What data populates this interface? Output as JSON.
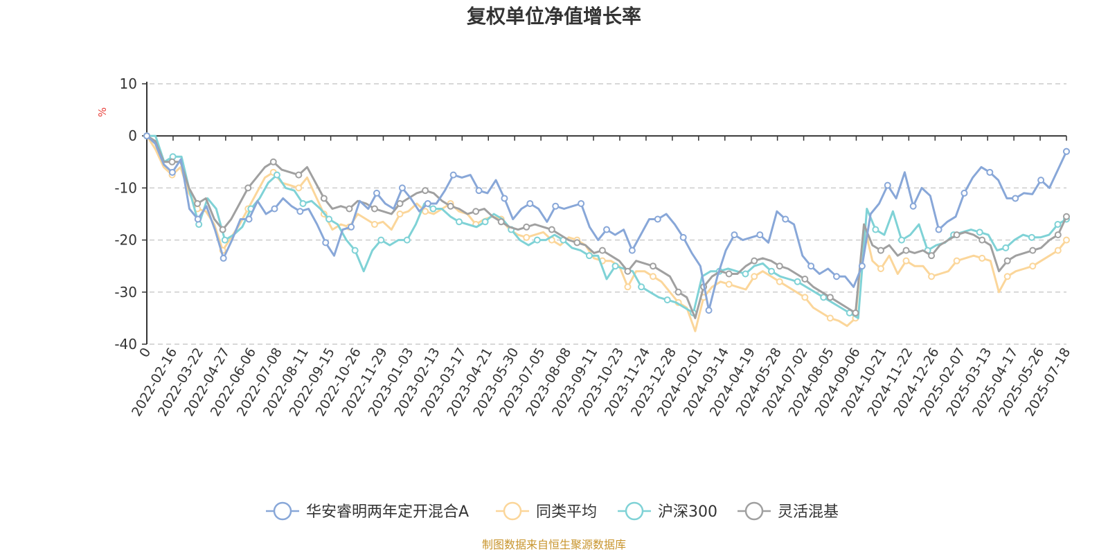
{
  "chart_data": {
    "type": "line",
    "title": "复权单位净值增长率",
    "y_unit": "%",
    "ylim": [
      -40,
      10
    ],
    "yticks": [
      10,
      0,
      -10,
      -20,
      -30,
      -40
    ],
    "grid": "horizontal-dashed",
    "legend_position": "bottom-center",
    "x_tick_labels": [
      "0",
      "2022-02-16",
      "2022-03-22",
      "2022-04-27",
      "2022-06-06",
      "2022-07-08",
      "2022-08-11",
      "2022-09-15",
      "2022-10-26",
      "2022-11-29",
      "2023-01-03",
      "2023-02-13",
      "2023-03-17",
      "2023-04-21",
      "2023-05-30",
      "2023-07-05",
      "2023-08-08",
      "2023-09-11",
      "2023-10-23",
      "2023-11-24",
      "2023-12-28",
      "2024-02-01",
      "2024-03-14",
      "2024-04-19",
      "2024-05-28",
      "2024-07-02",
      "2024-08-05",
      "2024-09-06",
      "2024-10-21",
      "2024-11-22",
      "2024-12-26",
      "2025-02-07",
      "2025-03-13",
      "2025-04-17",
      "2025-05-26",
      "2025-07-18"
    ],
    "series": [
      {
        "name": "华安睿明两年定开混合A",
        "color": "#88a7d8",
        "values": [
          0,
          -1.5,
          -5.5,
          -7,
          -4.5,
          -14,
          -16,
          -13.5,
          -18,
          -23.5,
          -20,
          -16,
          -16,
          -12.5,
          -15,
          -14,
          -12,
          -13.5,
          -14.5,
          -14,
          -17,
          -20.5,
          -23,
          -18,
          -17.5,
          -12.5,
          -14,
          -11,
          -13,
          -14,
          -10,
          -12,
          -14.5,
          -13,
          -13,
          -10.5,
          -7.5,
          -8,
          -7.5,
          -10.5,
          -11,
          -8.5,
          -12,
          -16,
          -14,
          -13,
          -14,
          -16.5,
          -13.5,
          -14,
          -13.5,
          -13,
          -17.5,
          -20,
          -18,
          -19,
          -18,
          -22,
          -19,
          -16,
          -16,
          -15,
          -17,
          -19.5,
          -22.5,
          -25,
          -33.5,
          -27,
          -22,
          -19,
          -20,
          -19.5,
          -19,
          -20.5,
          -14.5,
          -16,
          -17,
          -23,
          -25,
          -26.5,
          -25.5,
          -27,
          -27,
          -29,
          -25,
          -15,
          -13,
          -9.5,
          -12,
          -7,
          -13.5,
          -10,
          -11.5,
          -18,
          -16.5,
          -15.5,
          -11,
          -8,
          -6,
          -7,
          -8.5,
          -12,
          -12,
          -11,
          -11.2,
          -8.5,
          -10,
          -6.5,
          -3
        ]
      },
      {
        "name": "同类平均",
        "color": "#fbd69a",
        "values": [
          0,
          -2.5,
          -6,
          -7.5,
          -6,
          -11,
          -14,
          -14.5,
          -17,
          -22,
          -19.5,
          -17,
          -14,
          -11,
          -8,
          -7,
          -9,
          -9.5,
          -10,
          -8,
          -11.5,
          -15,
          -18,
          -17,
          -17.5,
          -15,
          -16,
          -17,
          -16.5,
          -18,
          -15,
          -14.5,
          -13,
          -14.5,
          -15,
          -14,
          -13,
          -14.5,
          -15,
          -17,
          -16,
          -15.5,
          -16,
          -18,
          -19,
          -19.5,
          -19,
          -18.5,
          -20,
          -21,
          -19.5,
          -20,
          -21,
          -23.5,
          -24,
          -24,
          -25,
          -29,
          -26,
          -26,
          -27,
          -28,
          -30,
          -32,
          -33,
          -37.5,
          -31,
          -29,
          -28,
          -28.5,
          -29,
          -29.5,
          -27,
          -26,
          -27,
          -28,
          -29,
          -30,
          -31,
          -33,
          -34,
          -35,
          -35.5,
          -36.5,
          -35,
          -17,
          -24,
          -25.5,
          -23,
          -26.5,
          -24,
          -25,
          -25,
          -27,
          -26.5,
          -26,
          -24,
          -23.5,
          -23,
          -23.5,
          -24,
          -30,
          -27,
          -26,
          -25.5,
          -25,
          -24,
          -23,
          -22,
          -20
        ]
      },
      {
        "name": "沪深300",
        "color": "#7fd2d6",
        "values": [
          0,
          0,
          -5,
          -4,
          -4,
          -11,
          -17,
          -12,
          -14,
          -20,
          -19,
          -17.5,
          -14,
          -12,
          -9,
          -7.5,
          -10,
          -10.5,
          -13,
          -12.5,
          -14,
          -16,
          -17,
          -20,
          -22,
          -26,
          -22,
          -20,
          -21,
          -20,
          -20,
          -17,
          -13,
          -14,
          -14,
          -15.5,
          -16.5,
          -17,
          -17.5,
          -16.5,
          -15,
          -16,
          -18,
          -20,
          -21,
          -20,
          -20,
          -19,
          -20,
          -21.5,
          -22,
          -23,
          -23,
          -27.5,
          -25,
          -25.5,
          -26,
          -29,
          -30,
          -31,
          -31.5,
          -32,
          -33,
          -34,
          -27,
          -26,
          -26,
          -25.5,
          -26,
          -26.5,
          -25,
          -24.5,
          -26,
          -27,
          -27.5,
          -28,
          -29,
          -30,
          -31,
          -32,
          -33,
          -34,
          -35,
          -14,
          -18,
          -19,
          -14.5,
          -20,
          -19,
          -17,
          -22,
          -21,
          -20.5,
          -19,
          -18.5,
          -18,
          -18.5,
          -19,
          -22,
          -21.5,
          -20,
          -19,
          -19.5,
          -19.5,
          -19,
          -17,
          -16
        ]
      },
      {
        "name": "灵活混基",
        "color": "#a0a0a0",
        "values": [
          0,
          -1,
          -5,
          -5,
          -5,
          -10,
          -13,
          -12,
          -16,
          -18,
          -16,
          -13,
          -10,
          -8,
          -6,
          -5,
          -6.5,
          -7,
          -7.5,
          -6,
          -9,
          -12,
          -14,
          -13.5,
          -14,
          -12.5,
          -13,
          -14,
          -14.5,
          -15,
          -13,
          -12,
          -11,
          -10.5,
          -11,
          -12.5,
          -13.5,
          -14,
          -15,
          -14.5,
          -14,
          -15.5,
          -16.5,
          -17.5,
          -18,
          -17.5,
          -17,
          -17.5,
          -18,
          -19,
          -20,
          -20.5,
          -21,
          -22.5,
          -22,
          -23,
          -24,
          -26,
          -24,
          -24.5,
          -25,
          -26,
          -27,
          -30,
          -31,
          -35,
          -29,
          -27,
          -26,
          -26.5,
          -26.5,
          -25,
          -24,
          -23.5,
          -24,
          -25,
          -25.5,
          -26.5,
          -27.5,
          -29,
          -30,
          -31,
          -32,
          -33,
          -34,
          -17,
          -21,
          -22,
          -21,
          -23,
          -22,
          -22.5,
          -22,
          -23,
          -21,
          -20,
          -19,
          -18.5,
          -19,
          -20,
          -21,
          -26,
          -24,
          -23,
          -22.5,
          -22,
          -21.5,
          -20,
          -19,
          -15.5
        ]
      }
    ]
  },
  "source_text": "制图数据来自恒生聚源数据库"
}
